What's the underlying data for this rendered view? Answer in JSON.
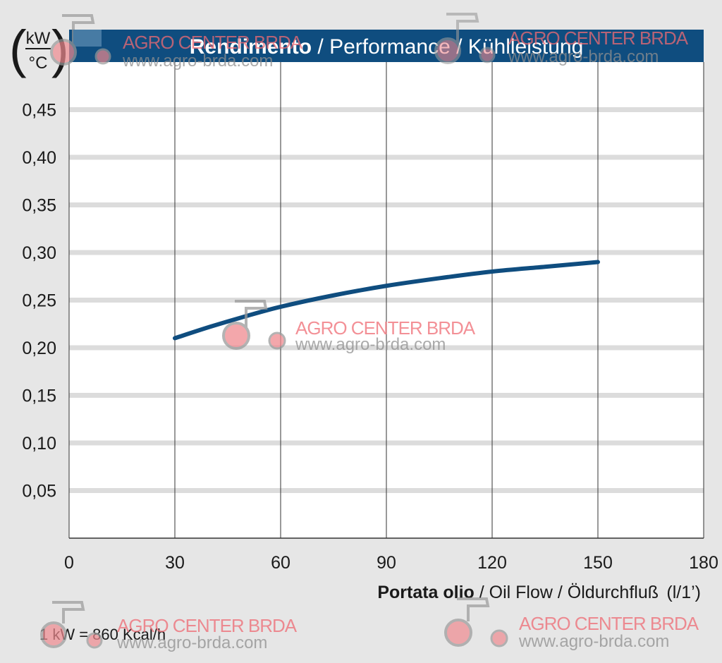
{
  "chart_data": {
    "type": "line",
    "title_bold": "Rendimento",
    "title_rest": " / Performance / Kühlleistung",
    "y_unit": {
      "numerator": "kW",
      "denominator": "°C"
    },
    "xlabel_bold": "Portata olio",
    "xlabel_rest": " / Oil Flow / Öldurchfluß",
    "xlabel_unit": "(l/1’)",
    "xlim": [
      0,
      180
    ],
    "ylim": [
      0,
      0.5
    ],
    "x_ticks": [
      0,
      30,
      60,
      90,
      120,
      150,
      180
    ],
    "y_ticks": [
      0.05,
      0.1,
      0.15,
      0.2,
      0.25,
      0.3,
      0.35,
      0.4,
      0.45
    ],
    "y_tick_labels": [
      "0,05",
      "0,10",
      "0,15",
      "0,20",
      "0,25",
      "0,30",
      "0,35",
      "0,40",
      "0,45"
    ],
    "grid": true,
    "series": [
      {
        "x": [
          30,
          40,
          50,
          60,
          75,
          90,
          105,
          120,
          135,
          150
        ],
        "y": [
          0.21,
          0.222,
          0.233,
          0.243,
          0.255,
          0.265,
          0.273,
          0.28,
          0.285,
          0.29
        ]
      }
    ],
    "note": "1 kW = 860 Kcal/h"
  },
  "colors": {
    "background": "#e6e6e6",
    "plot_area": "#ffffff",
    "title_bar": "#0f4d7f",
    "line": "#0f4d7f",
    "gridline_horizontal": "#dcdcdc",
    "gridline_vertical": "#333333"
  },
  "watermark": {
    "name": "AGRO CENTER BRDA",
    "url": "www.agro-brda.com",
    "icon": "tractor-logo-icon"
  }
}
